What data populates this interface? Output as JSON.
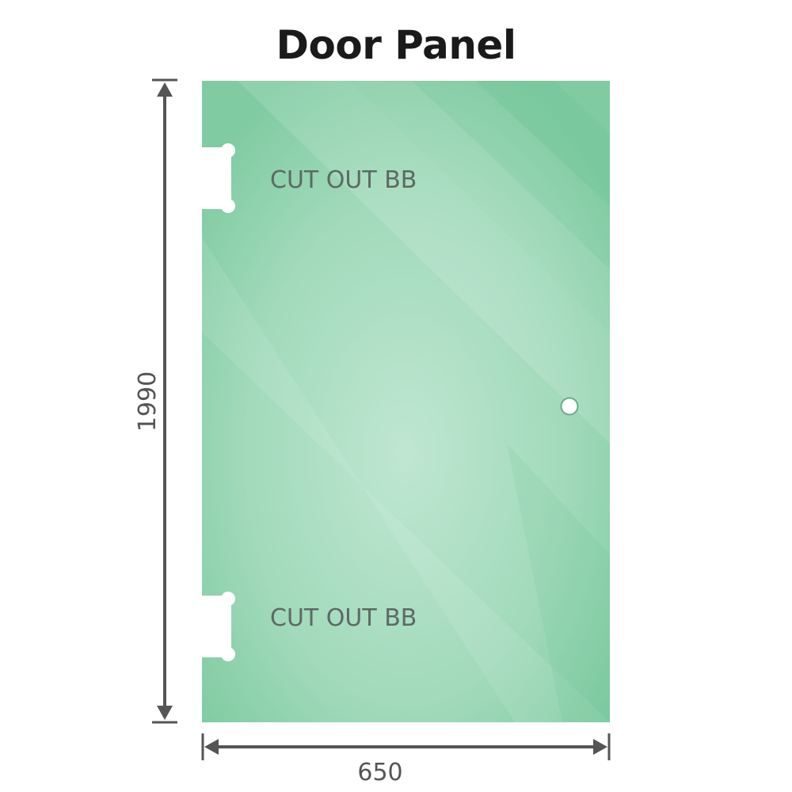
{
  "title": "Door Panel",
  "panel": {
    "cutout_top_label": "CUT OUT BB",
    "cutout_bottom_label": "CUT OUT BB",
    "glass_color": "#86cda5"
  },
  "dimensions": {
    "height": "1990",
    "width": "650",
    "line_color": "#555555"
  }
}
